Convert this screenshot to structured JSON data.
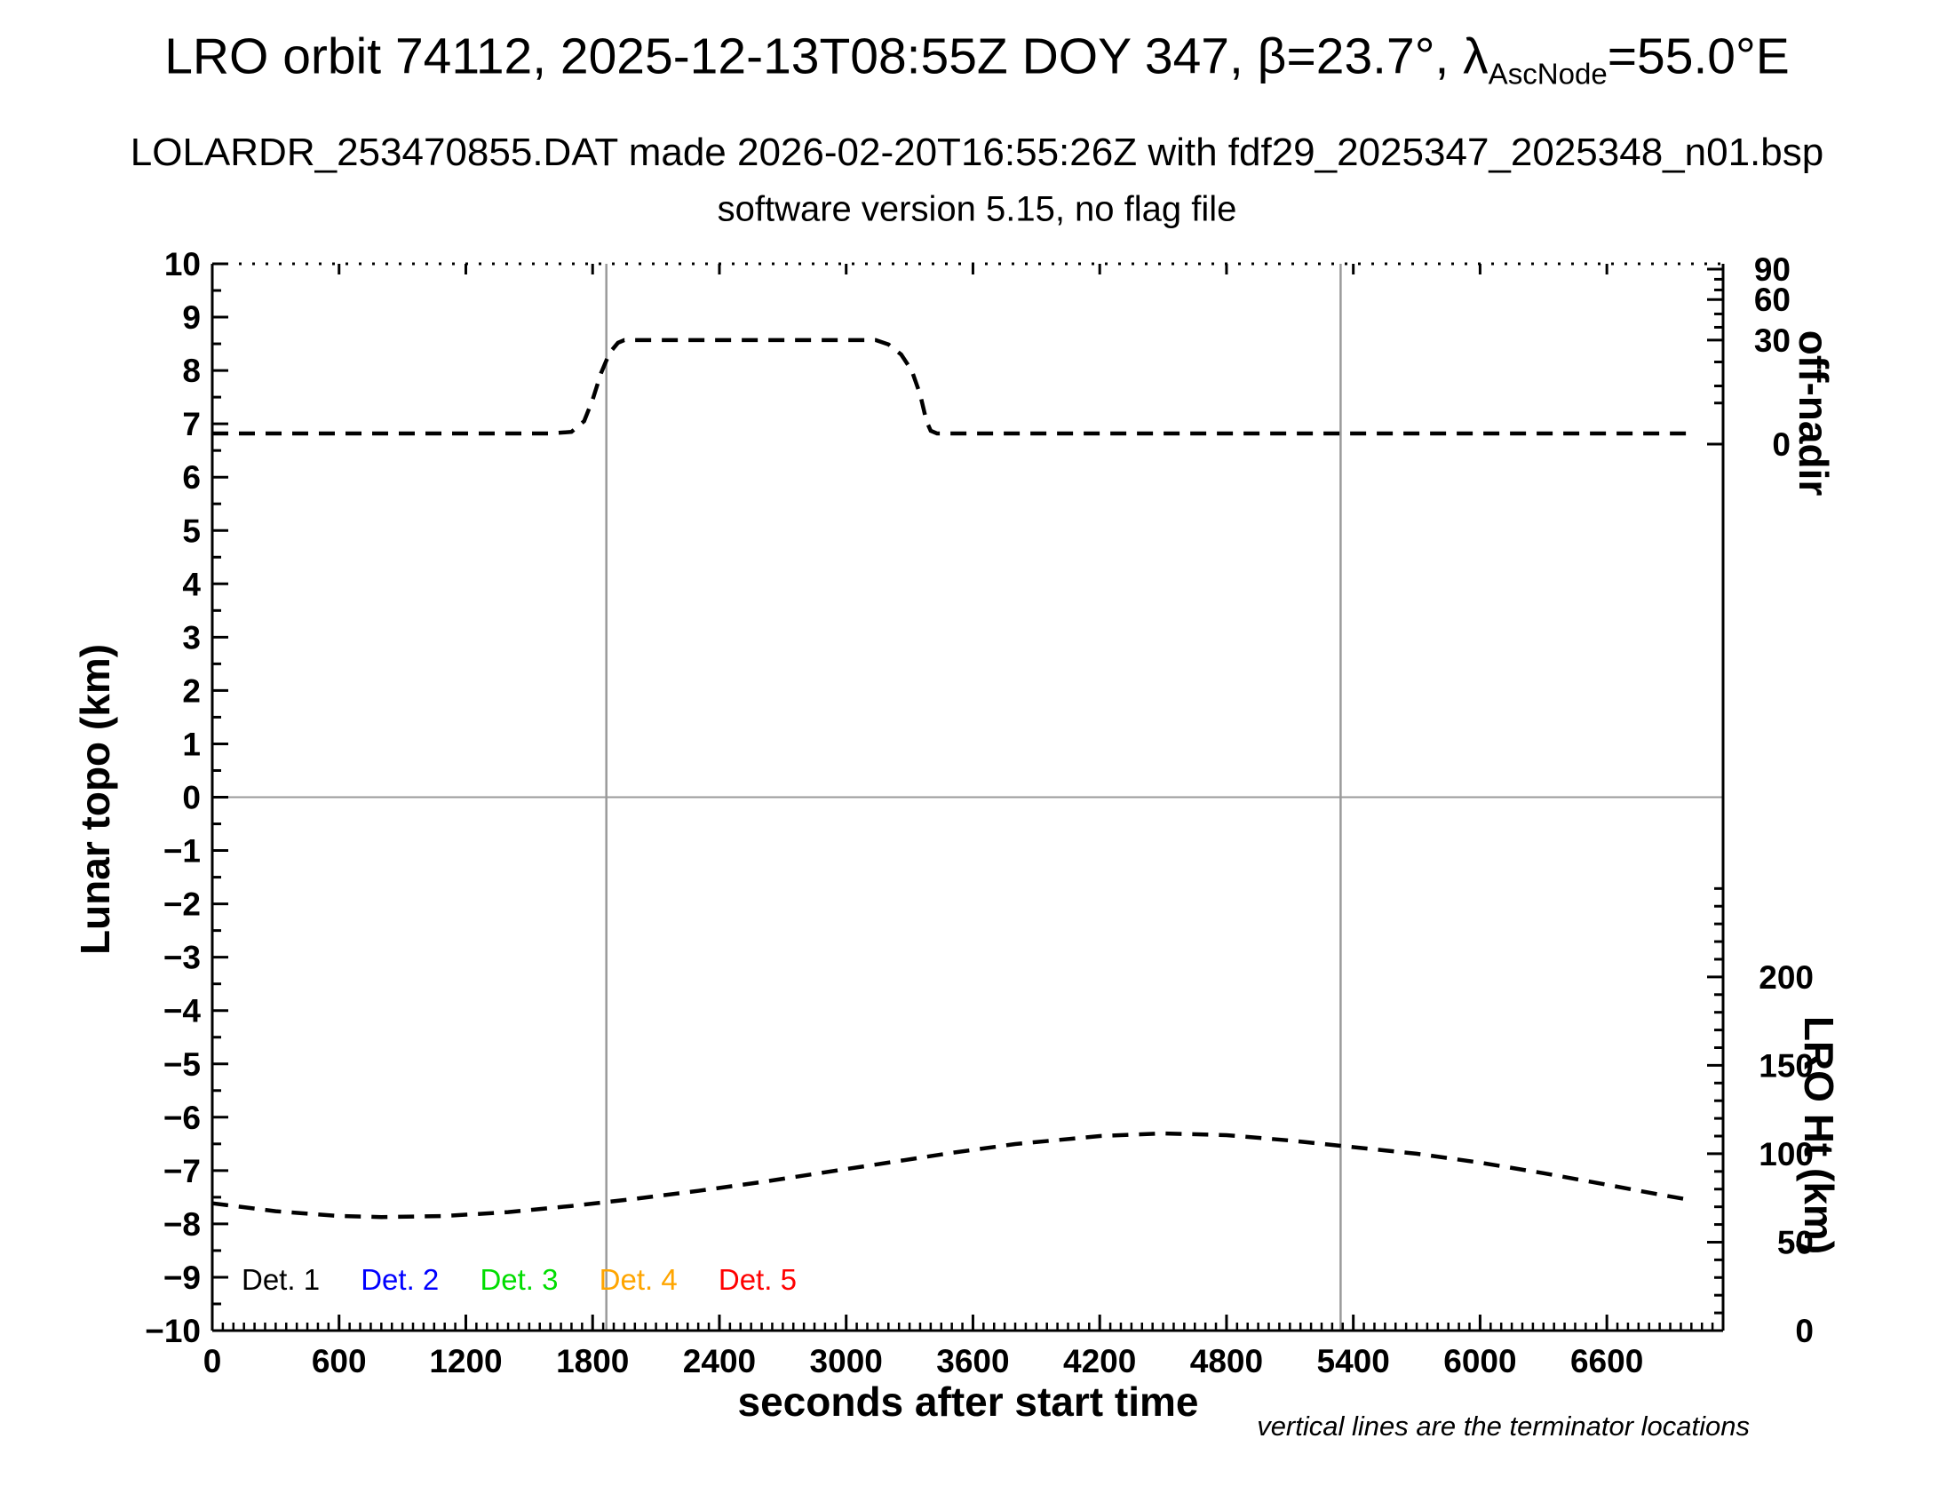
{
  "header": {
    "title_pre": "LRO orbit 74112, 2025-12-13T08:55Z DOY 347, β=23.7°, λ",
    "title_sub": "AscNode",
    "title_post": "=55.0°E",
    "subtitle": "LOLARDR_253470855.DAT made 2026-02-20T16:55:26Z with fdf29_2025347_2025348_n01.bsp",
    "version_line": "software version 5.15, no flag file"
  },
  "chart_data": {
    "type": "line",
    "title": "LRO orbit 74112, 2025-12-13T08:55Z DOY 347, β=23.7°, λAscNode=55.0°E",
    "subtitle": "LOLARDR_253470855.DAT made 2026-02-20T16:55:26Z with fdf29_2025347_2025348_n01.bsp",
    "version_line": "software version 5.15, no flag file",
    "xlabel": "seconds after start time",
    "footnote": "vertical lines are the terminator locations",
    "grid_color": "#9a9a9a",
    "x_axis": {
      "min": 0,
      "max": 7150,
      "major_step": 600,
      "minor_step": 50,
      "tick_labels": [
        "0",
        "600",
        "1200",
        "1800",
        "2400",
        "3000",
        "3600",
        "4200",
        "4800",
        "5400",
        "6000",
        "6600"
      ]
    },
    "y_left": {
      "label": "Lunar topo (km)",
      "min": -10,
      "max": 10,
      "major_step": 1,
      "minor_step": 0.5,
      "tick_labels": [
        "10",
        "9",
        "8",
        "7",
        "6",
        "5",
        "4",
        "3",
        "2",
        "1",
        "0",
        "−1",
        "−2",
        "−3",
        "−4",
        "−5",
        "−6",
        "−7",
        "−8",
        "−9",
        "−10"
      ]
    },
    "y_right_offnadir": {
      "label": "off-nadir",
      "major_ticks": [
        {
          "label": "90",
          "deg": 90,
          "pos": 9.9
        },
        {
          "label": "60",
          "deg": 60,
          "pos": 9.33
        },
        {
          "label": "30",
          "deg": 30,
          "pos": 8.57
        },
        {
          "label": "0",
          "deg": 0,
          "pos": 6.62
        }
      ],
      "minor_tick_pos": [
        9.71,
        9.51,
        9.06,
        8.81,
        8.16,
        7.71,
        7.39
      ]
    },
    "y_right_lro": {
      "label": "LRO Ht (km)",
      "min_unit": -10,
      "km_to_unit": 0.03315,
      "major_ticks_km": [
        200,
        150,
        100,
        50,
        0
      ],
      "tick_labels": [
        "200",
        "150",
        "100",
        "50",
        "0"
      ],
      "minor_step_km": 10,
      "minor_max_km": 250
    },
    "zero_line_y": 0,
    "terminator_lines_s": [
      1865,
      5340
    ],
    "series": [
      {
        "name": "off-nadir pointing angle",
        "style": "dashed",
        "color": "#000000",
        "axis": "topo_units",
        "points": [
          [
            0,
            6.82
          ],
          [
            1600,
            6.82
          ],
          [
            1700,
            6.85
          ],
          [
            1760,
            7.05
          ],
          [
            1800,
            7.45
          ],
          [
            1840,
            7.95
          ],
          [
            1880,
            8.33
          ],
          [
            1920,
            8.52
          ],
          [
            1950,
            8.57
          ],
          [
            3140,
            8.57
          ],
          [
            3200,
            8.49
          ],
          [
            3260,
            8.3
          ],
          [
            3310,
            8.0
          ],
          [
            3350,
            7.55
          ],
          [
            3380,
            7.05
          ],
          [
            3400,
            6.87
          ],
          [
            3430,
            6.82
          ],
          [
            7010,
            6.82
          ]
        ]
      },
      {
        "name": "LRO height",
        "style": "dashed",
        "color": "#000000",
        "axis": "lro_km",
        "points_km": [
          [
            0,
            72
          ],
          [
            300,
            67.5
          ],
          [
            600,
            64.8
          ],
          [
            800,
            64.2
          ],
          [
            1100,
            64.8
          ],
          [
            1400,
            67
          ],
          [
            1700,
            70.5
          ],
          [
            2000,
            74.5
          ],
          [
            2300,
            79
          ],
          [
            2600,
            84
          ],
          [
            2900,
            89.5
          ],
          [
            3200,
            95
          ],
          [
            3500,
            100.5
          ],
          [
            3800,
            105.5
          ],
          [
            4200,
            110
          ],
          [
            4500,
            111.5
          ],
          [
            4800,
            110.5
          ],
          [
            5100,
            107.5
          ],
          [
            5340,
            104.5
          ],
          [
            5700,
            100
          ],
          [
            6000,
            95
          ],
          [
            6300,
            89
          ],
          [
            6600,
            82.5
          ],
          [
            6800,
            78
          ],
          [
            7010,
            73.5
          ]
        ]
      }
    ],
    "legend": {
      "items": [
        {
          "label": "Det. 1",
          "color": "#000000"
        },
        {
          "label": "Det. 2",
          "color": "#0000ff"
        },
        {
          "label": "Det. 3",
          "color": "#00dd00"
        },
        {
          "label": "Det. 4",
          "color": "#ffa500"
        },
        {
          "label": "Det. 5",
          "color": "#ff0000"
        }
      ]
    }
  }
}
